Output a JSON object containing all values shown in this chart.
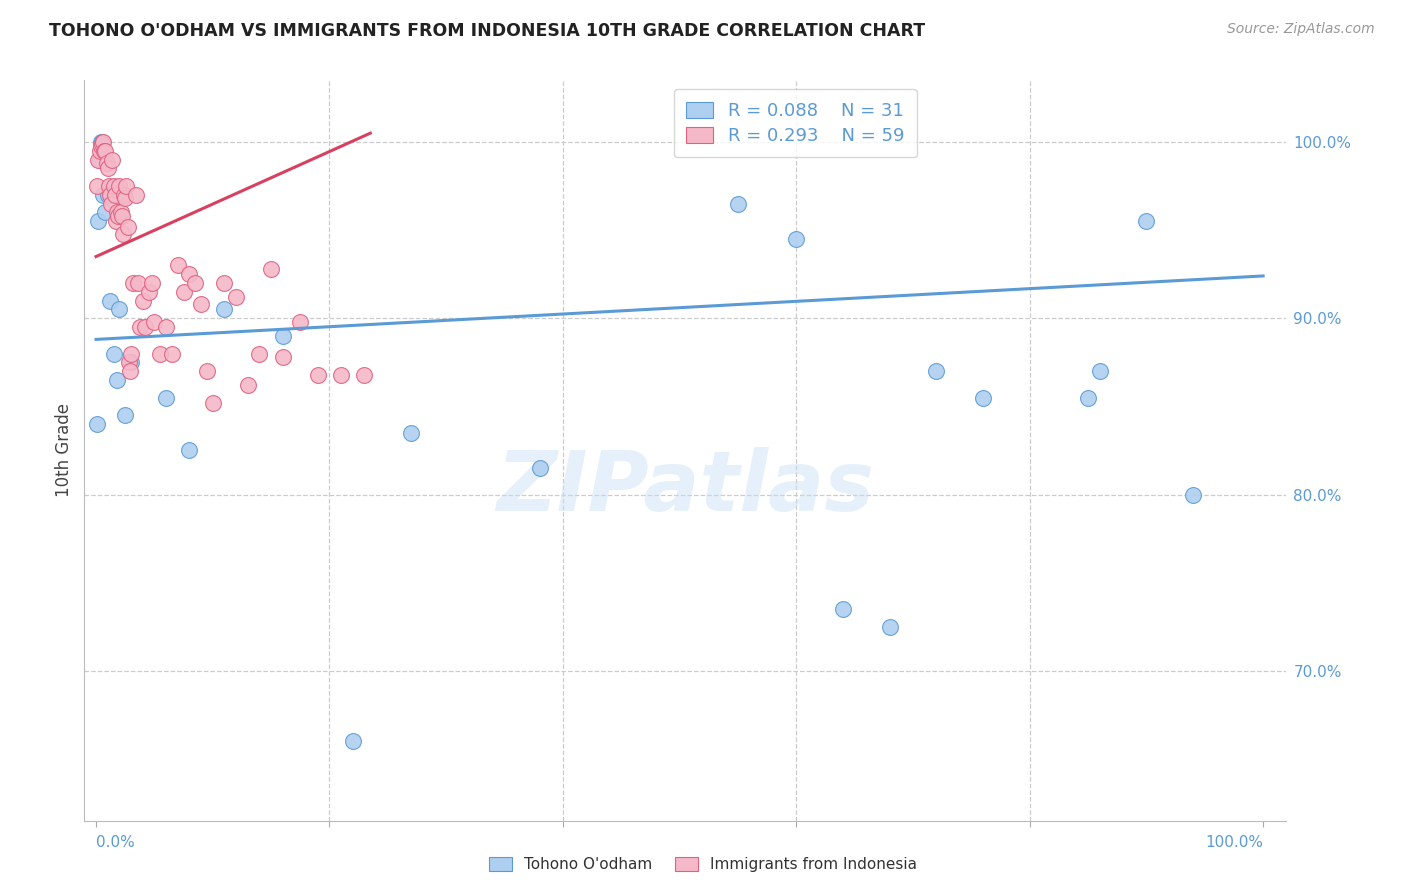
{
  "title": "TOHONO O'ODHAM VS IMMIGRANTS FROM INDONESIA 10TH GRADE CORRELATION CHART",
  "source": "Source: ZipAtlas.com",
  "ylabel": "10th Grade",
  "watermark": "ZIPatlas",
  "legend_blue_r": "R = 0.088",
  "legend_blue_n": "N = 31",
  "legend_pink_r": "R = 0.293",
  "legend_pink_n": "N = 59",
  "blue_color": "#aecff0",
  "pink_color": "#f5b8c8",
  "blue_edge_color": "#5b9bd5",
  "pink_edge_color": "#e06080",
  "blue_line_color": "#5b9bd5",
  "pink_line_color": "#d94060",
  "grid_color": "#cccccc",
  "tick_color": "#5b9bd5",
  "background_color": "#ffffff",
  "ytick_labels": [
    "70.0%",
    "80.0%",
    "90.0%",
    "100.0%"
  ],
  "ytick_values": [
    0.7,
    0.8,
    0.9,
    1.0
  ],
  "ylim": [
    0.615,
    1.035
  ],
  "xlim": [
    -0.01,
    1.02
  ],
  "blue_scatter_x": [
    0.001,
    0.002,
    0.003,
    0.004,
    0.005,
    0.006,
    0.008,
    0.01,
    0.012,
    0.015,
    0.018,
    0.02,
    0.025,
    0.03,
    0.06,
    0.08,
    0.11,
    0.16,
    0.22,
    0.27,
    0.38,
    0.55,
    0.6,
    0.64,
    0.68,
    0.72,
    0.76,
    0.85,
    0.86,
    0.9,
    0.94
  ],
  "blue_scatter_y": [
    0.84,
    0.955,
    0.99,
    1.0,
    1.0,
    0.97,
    0.96,
    0.97,
    0.91,
    0.88,
    0.865,
    0.905,
    0.845,
    0.875,
    0.855,
    0.825,
    0.905,
    0.89,
    0.66,
    0.835,
    0.815,
    0.965,
    0.945,
    0.735,
    0.725,
    0.87,
    0.855,
    0.855,
    0.87,
    0.955,
    0.8
  ],
  "pink_scatter_x": [
    0.001,
    0.002,
    0.003,
    0.004,
    0.005,
    0.006,
    0.007,
    0.008,
    0.009,
    0.01,
    0.011,
    0.012,
    0.013,
    0.014,
    0.015,
    0.016,
    0.017,
    0.018,
    0.019,
    0.02,
    0.021,
    0.022,
    0.023,
    0.024,
    0.025,
    0.026,
    0.027,
    0.028,
    0.029,
    0.03,
    0.032,
    0.034,
    0.036,
    0.038,
    0.04,
    0.042,
    0.045,
    0.048,
    0.05,
    0.055,
    0.06,
    0.065,
    0.07,
    0.075,
    0.08,
    0.085,
    0.09,
    0.095,
    0.1,
    0.11,
    0.12,
    0.13,
    0.14,
    0.15,
    0.16,
    0.175,
    0.19,
    0.21,
    0.23
  ],
  "pink_scatter_y": [
    0.975,
    0.99,
    0.995,
    0.998,
    0.999,
    1.0,
    0.995,
    0.995,
    0.988,
    0.985,
    0.975,
    0.97,
    0.965,
    0.99,
    0.975,
    0.97,
    0.955,
    0.96,
    0.958,
    0.975,
    0.96,
    0.958,
    0.948,
    0.97,
    0.968,
    0.975,
    0.952,
    0.875,
    0.87,
    0.88,
    0.92,
    0.97,
    0.92,
    0.895,
    0.91,
    0.895,
    0.915,
    0.92,
    0.898,
    0.88,
    0.895,
    0.88,
    0.93,
    0.915,
    0.925,
    0.92,
    0.908,
    0.87,
    0.852,
    0.92,
    0.912,
    0.862,
    0.88,
    0.928,
    0.878,
    0.898,
    0.868,
    0.868,
    0.868
  ],
  "blue_trend_x": [
    0.0,
    1.0
  ],
  "blue_trend_y": [
    0.888,
    0.924
  ],
  "pink_trend_x": [
    0.0,
    0.235
  ],
  "pink_trend_y": [
    0.935,
    1.005
  ]
}
